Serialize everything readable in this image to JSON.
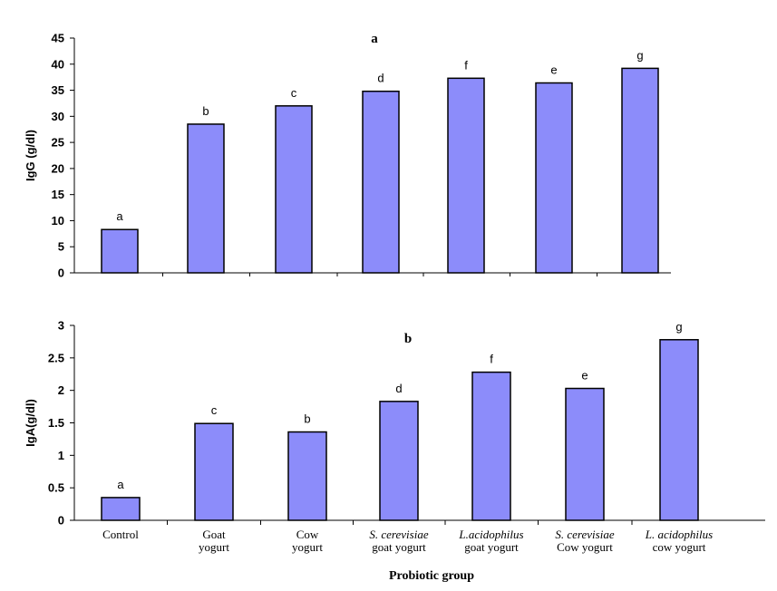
{
  "colors": {
    "bar_fill": "#8C8CFA",
    "bar_stroke": "#000000",
    "axis": "#000000"
  },
  "x_title": "Probiotic group",
  "chart_data": [
    {
      "type": "bar",
      "title": "a",
      "ylabel": "IgG (g/dl)",
      "ylim": [
        0,
        45
      ],
      "yticks": [
        0,
        5,
        10,
        15,
        20,
        25,
        30,
        35,
        40,
        45
      ],
      "ytick_labels": [
        "0",
        "5",
        "10",
        "15",
        "20",
        "25",
        "30",
        "35",
        "40",
        "45"
      ],
      "categories": [
        "Control",
        "Goat yogurt",
        "Cow yogurt",
        "S. cerevisiae goat yogurt",
        "L.acidophilus goat yogurt",
        "S. cerevisiae Cow yogurt",
        "L. acidophilus cow yogurt"
      ],
      "values": [
        8.3,
        28.5,
        32.0,
        34.8,
        37.3,
        36.4,
        39.2
      ],
      "annotations": [
        "a",
        "b",
        "c",
        "d",
        "f",
        "e",
        "g"
      ],
      "grid": false
    },
    {
      "type": "bar",
      "title": "b",
      "ylabel": "IgA(g/dl)",
      "ylim": [
        0,
        3
      ],
      "yticks": [
        0,
        0.5,
        1,
        1.5,
        2,
        2.5,
        3
      ],
      "ytick_labels": [
        "0",
        "0.5",
        "1",
        "1.5",
        "2",
        "2.5",
        "3"
      ],
      "categories": [
        "Control",
        "Goat yogurt",
        "Cow yogurt",
        "S. cerevisiae goat yogurt",
        "L.acidophilus goat yogurt",
        "S. cerevisiae Cow yogurt",
        "L. acidophilus cow yogurt"
      ],
      "category_labels": [
        {
          "line1": "Control",
          "line2": "",
          "italic": false
        },
        {
          "line1": "Goat",
          "line2": "yogurt",
          "italic": false
        },
        {
          "line1": "Cow",
          "line2": "yogurt",
          "italic": false
        },
        {
          "line1": "S. cerevisiae",
          "line2": "goat yogurt",
          "italic": true
        },
        {
          "line1": "L.acidophilus",
          "line2": "goat yogurt",
          "italic": true
        },
        {
          "line1": "S. cerevisiae",
          "line2": "Cow yogurt",
          "italic": true
        },
        {
          "line1": "L. acidophilus",
          "line2": "cow yogurt",
          "italic": true
        }
      ],
      "values": [
        0.35,
        1.49,
        1.36,
        1.83,
        2.28,
        2.03,
        2.78
      ],
      "annotations": [
        "a",
        "c",
        "b",
        "d",
        "f",
        "e",
        "g"
      ],
      "grid": false
    }
  ]
}
